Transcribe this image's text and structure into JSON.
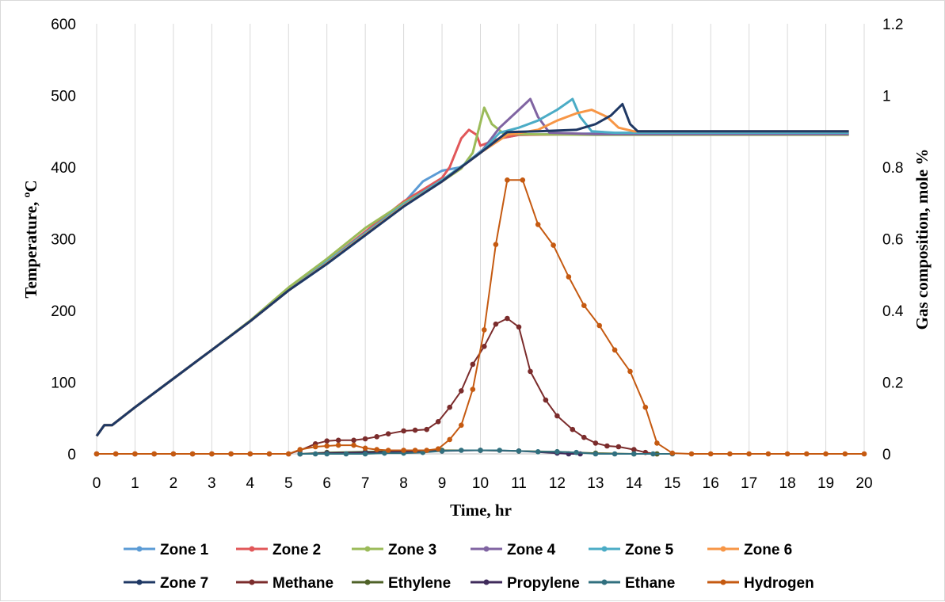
{
  "chart_data": {
    "type": "line",
    "title": "",
    "xlabel": "Time, hr",
    "ylabel": "Temperature, ºC",
    "y2label": "Gas composition, mole %",
    "xlim": [
      0,
      20
    ],
    "ylim": [
      0,
      600
    ],
    "y2lim": [
      0,
      1.2
    ],
    "xticks": [
      "0",
      "1",
      "2",
      "3",
      "4",
      "5",
      "6",
      "7",
      "8",
      "9",
      "10",
      "11",
      "12",
      "13",
      "14",
      "15",
      "16",
      "17",
      "18",
      "19",
      "20"
    ],
    "yticks": [
      "0",
      "100",
      "200",
      "300",
      "400",
      "500",
      "600"
    ],
    "y2ticks": [
      "0",
      "0.2",
      "0.4",
      "0.6",
      "0.8",
      "1",
      "1.2"
    ],
    "grid": "vertical",
    "legend_position": "bottom",
    "series": [
      {
        "name": "Zone 1",
        "axis": "left",
        "color": "#5b9bd5",
        "points": [
          [
            0,
            25
          ],
          [
            0.2,
            40
          ],
          [
            0.4,
            40
          ],
          [
            1,
            65
          ],
          [
            2,
            105
          ],
          [
            3,
            145
          ],
          [
            4,
            185
          ],
          [
            5,
            228
          ],
          [
            6,
            265
          ],
          [
            7,
            305
          ],
          [
            8,
            350
          ],
          [
            8.5,
            380
          ],
          [
            9,
            395
          ],
          [
            9.5,
            400
          ],
          [
            10,
            422
          ],
          [
            10.5,
            440
          ],
          [
            11,
            445
          ],
          [
            13,
            447
          ],
          [
            15,
            447
          ],
          [
            19.6,
            447
          ]
        ]
      },
      {
        "name": "Zone 2",
        "axis": "left",
        "color": "#e15759",
        "points": [
          [
            0,
            25
          ],
          [
            0.2,
            40
          ],
          [
            0.4,
            40
          ],
          [
            1,
            65
          ],
          [
            2,
            105
          ],
          [
            3,
            145
          ],
          [
            4,
            185
          ],
          [
            5,
            228
          ],
          [
            6,
            268
          ],
          [
            7,
            310
          ],
          [
            8,
            352
          ],
          [
            9,
            385
          ],
          [
            9.2,
            400
          ],
          [
            9.5,
            440
          ],
          [
            9.7,
            452
          ],
          [
            9.9,
            445
          ],
          [
            10,
            430
          ],
          [
            10.5,
            440
          ],
          [
            11,
            445
          ],
          [
            13,
            446
          ],
          [
            15,
            446
          ],
          [
            19.6,
            446
          ]
        ]
      },
      {
        "name": "Zone 3",
        "axis": "left",
        "color": "#9bbb59",
        "points": [
          [
            0,
            25
          ],
          [
            0.2,
            40
          ],
          [
            0.4,
            40
          ],
          [
            1,
            65
          ],
          [
            2,
            105
          ],
          [
            3,
            145
          ],
          [
            4,
            186
          ],
          [
            5,
            232
          ],
          [
            6,
            272
          ],
          [
            7,
            315
          ],
          [
            8,
            350
          ],
          [
            9,
            380
          ],
          [
            9.5,
            398
          ],
          [
            9.8,
            420
          ],
          [
            10.1,
            483
          ],
          [
            10.3,
            460
          ],
          [
            10.6,
            447
          ],
          [
            11,
            446
          ],
          [
            13,
            445
          ],
          [
            15,
            445
          ],
          [
            19.6,
            445
          ]
        ]
      },
      {
        "name": "Zone 4",
        "axis": "left",
        "color": "#8064a2",
        "points": [
          [
            0,
            25
          ],
          [
            0.2,
            40
          ],
          [
            0.4,
            40
          ],
          [
            1,
            65
          ],
          [
            2,
            105
          ],
          [
            3,
            145
          ],
          [
            4,
            185
          ],
          [
            5,
            228
          ],
          [
            6,
            268
          ],
          [
            7,
            308
          ],
          [
            8,
            348
          ],
          [
            9,
            380
          ],
          [
            10,
            420
          ],
          [
            10.5,
            455
          ],
          [
            11,
            480
          ],
          [
            11.3,
            495
          ],
          [
            11.5,
            470
          ],
          [
            11.8,
            448
          ],
          [
            13,
            446
          ],
          [
            15,
            446
          ],
          [
            19.6,
            446
          ]
        ]
      },
      {
        "name": "Zone 5",
        "axis": "left",
        "color": "#4bacc6",
        "points": [
          [
            0,
            25
          ],
          [
            0.2,
            40
          ],
          [
            0.4,
            40
          ],
          [
            1,
            65
          ],
          [
            2,
            105
          ],
          [
            3,
            145
          ],
          [
            4,
            185
          ],
          [
            5,
            228
          ],
          [
            6,
            268
          ],
          [
            7,
            308
          ],
          [
            8,
            348
          ],
          [
            9,
            382
          ],
          [
            10,
            420
          ],
          [
            10.5,
            448
          ],
          [
            11,
            455
          ],
          [
            11.5,
            465
          ],
          [
            12,
            480
          ],
          [
            12.4,
            495
          ],
          [
            12.6,
            470
          ],
          [
            12.9,
            450
          ],
          [
            13.5,
            448
          ],
          [
            15,
            448
          ],
          [
            19.6,
            448
          ]
        ]
      },
      {
        "name": "Zone 6",
        "axis": "left",
        "color": "#f79646",
        "points": [
          [
            0,
            25
          ],
          [
            0.2,
            40
          ],
          [
            0.4,
            40
          ],
          [
            1,
            65
          ],
          [
            2,
            105
          ],
          [
            3,
            145
          ],
          [
            4,
            185
          ],
          [
            5,
            228
          ],
          [
            6,
            266
          ],
          [
            7,
            306
          ],
          [
            8,
            346
          ],
          [
            9,
            380
          ],
          [
            10,
            420
          ],
          [
            10.7,
            445
          ],
          [
            11.5,
            452
          ],
          [
            12,
            465
          ],
          [
            12.5,
            475
          ],
          [
            12.9,
            480
          ],
          [
            13.3,
            470
          ],
          [
            13.6,
            455
          ],
          [
            14,
            450
          ],
          [
            15,
            450
          ],
          [
            19.6,
            450
          ]
        ]
      },
      {
        "name": "Zone 7",
        "axis": "left",
        "color": "#1f3864",
        "points": [
          [
            0,
            25
          ],
          [
            0.2,
            40
          ],
          [
            0.4,
            40
          ],
          [
            1,
            65
          ],
          [
            2,
            105
          ],
          [
            3,
            145
          ],
          [
            4,
            185
          ],
          [
            5,
            228
          ],
          [
            6,
            265
          ],
          [
            7,
            305
          ],
          [
            8,
            345
          ],
          [
            9,
            380
          ],
          [
            10,
            420
          ],
          [
            10.7,
            449
          ],
          [
            11.5,
            450
          ],
          [
            12.5,
            452
          ],
          [
            13,
            460
          ],
          [
            13.4,
            472
          ],
          [
            13.7,
            488
          ],
          [
            13.9,
            460
          ],
          [
            14.1,
            450
          ],
          [
            15,
            450
          ],
          [
            19.6,
            450
          ]
        ]
      },
      {
        "name": "Methane",
        "axis": "right",
        "color": "#7b2c2c",
        "points": [
          [
            0,
            0
          ],
          [
            0.5,
            0
          ],
          [
            1,
            0
          ],
          [
            1.5,
            0
          ],
          [
            2,
            0
          ],
          [
            2.5,
            0
          ],
          [
            3,
            0
          ],
          [
            3.5,
            0
          ],
          [
            4,
            0
          ],
          [
            4.5,
            0
          ],
          [
            5,
            0
          ],
          [
            5.3,
            0.01
          ],
          [
            5.7,
            0.028
          ],
          [
            6,
            0.036
          ],
          [
            6.3,
            0.038
          ],
          [
            6.7,
            0.038
          ],
          [
            7,
            0.042
          ],
          [
            7.3,
            0.048
          ],
          [
            7.6,
            0.056
          ],
          [
            8,
            0.064
          ],
          [
            8.3,
            0.066
          ],
          [
            8.6,
            0.068
          ],
          [
            8.9,
            0.09
          ],
          [
            9.2,
            0.13
          ],
          [
            9.5,
            0.176
          ],
          [
            9.8,
            0.25
          ],
          [
            10.1,
            0.3
          ],
          [
            10.4,
            0.362
          ],
          [
            10.7,
            0.378
          ],
          [
            11,
            0.354
          ],
          [
            11.3,
            0.23
          ],
          [
            11.7,
            0.15
          ],
          [
            12,
            0.106
          ],
          [
            12.4,
            0.068
          ],
          [
            12.7,
            0.046
          ],
          [
            13,
            0.03
          ],
          [
            13.3,
            0.022
          ],
          [
            13.6,
            0.02
          ],
          [
            14,
            0.012
          ],
          [
            14.3,
            0.004
          ],
          [
            14.6,
            0
          ]
        ]
      },
      {
        "name": "Ethylene",
        "axis": "right",
        "color": "#4f6228",
        "points": [
          [
            5.3,
            0
          ],
          [
            6,
            0.004
          ],
          [
            7,
            0.006
          ],
          [
            8,
            0.008
          ],
          [
            9,
            0.01
          ],
          [
            10,
            0.01
          ],
          [
            11,
            0.008
          ],
          [
            12,
            0.006
          ],
          [
            13,
            0.002
          ],
          [
            14,
            0
          ],
          [
            14.6,
            0
          ]
        ]
      },
      {
        "name": "Propylene",
        "axis": "right",
        "color": "#3f2b5b",
        "points": [
          [
            5.3,
            0
          ],
          [
            6,
            0.002
          ],
          [
            7,
            0.004
          ],
          [
            8,
            0.006
          ],
          [
            9,
            0.008
          ],
          [
            10,
            0.01
          ],
          [
            11,
            0.008
          ],
          [
            12,
            0.002
          ],
          [
            12.3,
            0
          ],
          [
            12.6,
            0
          ]
        ]
      },
      {
        "name": "Ethane",
        "axis": "right",
        "color": "#31707f",
        "points": [
          [
            5.3,
            0
          ],
          [
            5.7,
            0
          ],
          [
            6,
            0
          ],
          [
            6.5,
            0
          ],
          [
            7,
            0
          ],
          [
            7.5,
            0.002
          ],
          [
            8,
            0.002
          ],
          [
            8.5,
            0.004
          ],
          [
            9,
            0.008
          ],
          [
            9.5,
            0.01
          ],
          [
            10,
            0.01
          ],
          [
            10.5,
            0.01
          ],
          [
            11,
            0.008
          ],
          [
            11.5,
            0.006
          ],
          [
            12,
            0.006
          ],
          [
            12.5,
            0.004
          ],
          [
            13,
            0
          ],
          [
            13.5,
            0
          ],
          [
            14,
            0
          ],
          [
            14.5,
            0
          ],
          [
            15,
            0
          ]
        ]
      },
      {
        "name": "Hydrogen",
        "axis": "right",
        "color": "#c55a11",
        "points": [
          [
            0,
            0
          ],
          [
            0.5,
            0
          ],
          [
            1,
            0
          ],
          [
            1.5,
            0
          ],
          [
            2,
            0
          ],
          [
            2.5,
            0
          ],
          [
            3,
            0
          ],
          [
            3.5,
            0
          ],
          [
            4,
            0
          ],
          [
            4.5,
            0
          ],
          [
            5,
            0
          ],
          [
            5.3,
            0.012
          ],
          [
            5.7,
            0.02
          ],
          [
            6,
            0.022
          ],
          [
            6.3,
            0.024
          ],
          [
            6.7,
            0.024
          ],
          [
            7,
            0.016
          ],
          [
            7.3,
            0.012
          ],
          [
            7.6,
            0.01
          ],
          [
            8,
            0.01
          ],
          [
            8.3,
            0.01
          ],
          [
            8.6,
            0.01
          ],
          [
            8.9,
            0.014
          ],
          [
            9.2,
            0.04
          ],
          [
            9.5,
            0.08
          ],
          [
            9.8,
            0.18
          ],
          [
            10.1,
            0.346
          ],
          [
            10.4,
            0.584
          ],
          [
            10.7,
            0.764
          ],
          [
            11.1,
            0.764
          ],
          [
            11.5,
            0.64
          ],
          [
            11.9,
            0.582
          ],
          [
            12.3,
            0.494
          ],
          [
            12.7,
            0.414
          ],
          [
            13.1,
            0.358
          ],
          [
            13.5,
            0.29
          ],
          [
            13.9,
            0.23
          ],
          [
            14.3,
            0.13
          ],
          [
            14.6,
            0.03
          ],
          [
            15,
            0.002
          ],
          [
            15.5,
            0
          ],
          [
            16,
            0
          ],
          [
            16.5,
            0
          ],
          [
            17,
            0
          ],
          [
            17.5,
            0
          ],
          [
            18,
            0
          ],
          [
            18.5,
            0
          ],
          [
            19,
            0
          ],
          [
            19.5,
            0
          ],
          [
            20,
            0
          ]
        ]
      }
    ]
  }
}
